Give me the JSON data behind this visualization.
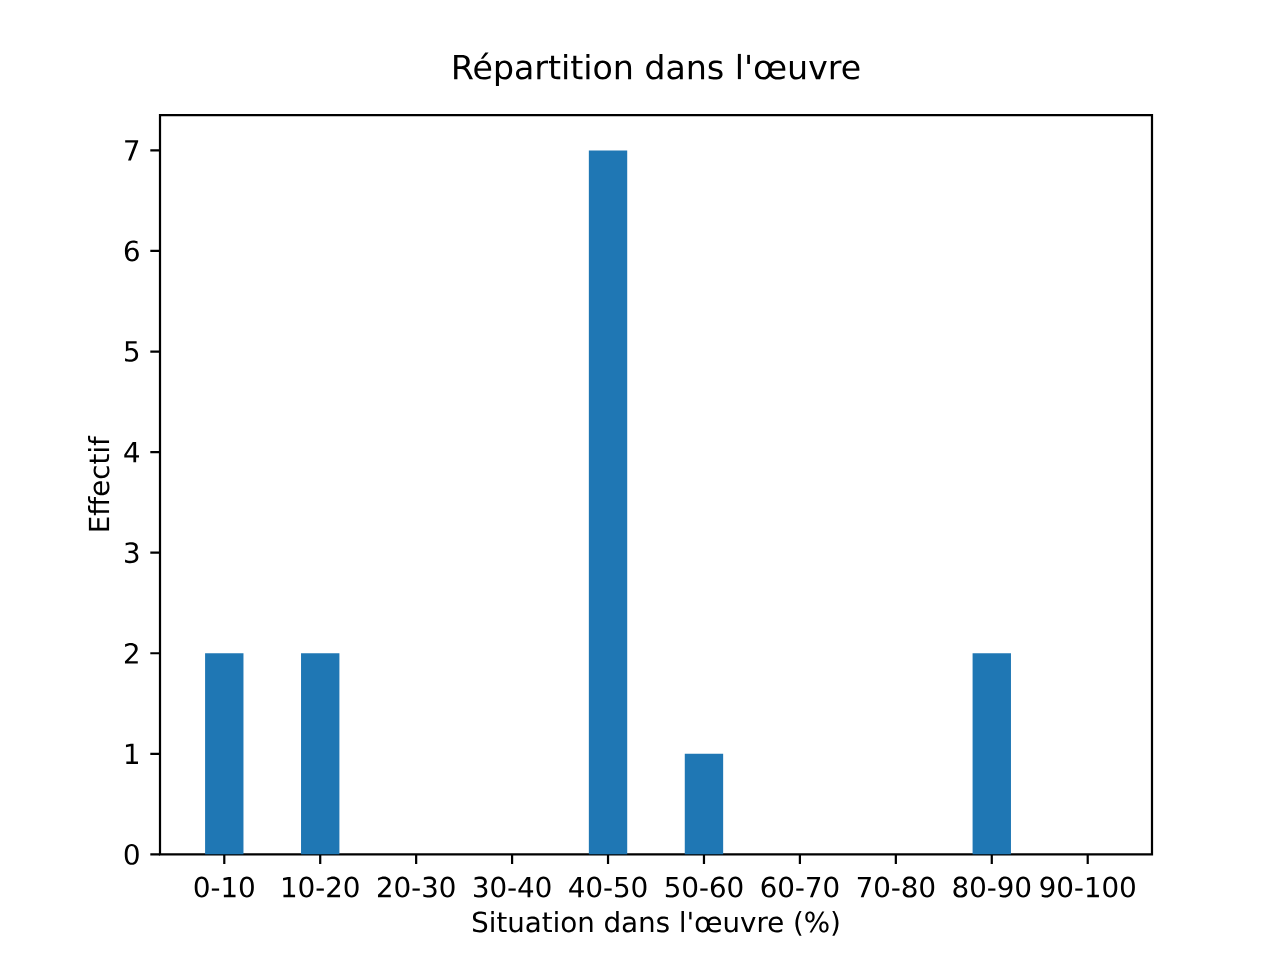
{
  "chart_data": {
    "type": "bar",
    "title": "Répartition dans l'œuvre",
    "xlabel": "Situation dans l'œuvre (%)",
    "ylabel": "Effectif",
    "categories": [
      "0-10",
      "10-20",
      "20-30",
      "30-40",
      "40-50",
      "50-60",
      "60-70",
      "70-80",
      "80-90",
      "90-100"
    ],
    "values": [
      2,
      2,
      0,
      0,
      7,
      1,
      0,
      0,
      2,
      0
    ],
    "color": "#1f77b4",
    "ylim": [
      0,
      7.35
    ],
    "yticks": [
      0,
      1,
      2,
      3,
      4,
      5,
      6,
      7
    ]
  }
}
